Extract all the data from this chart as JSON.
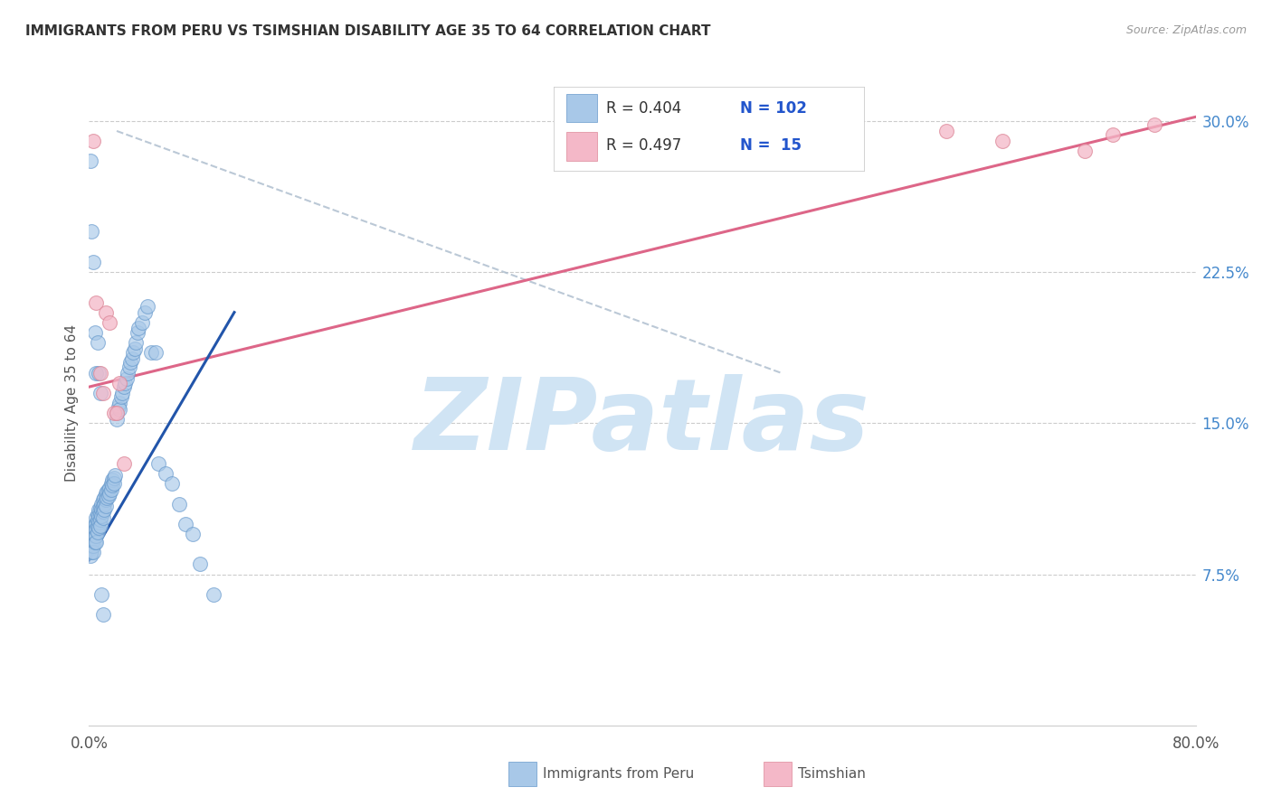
{
  "title": "IMMIGRANTS FROM PERU VS TSIMSHIAN DISABILITY AGE 35 TO 64 CORRELATION CHART",
  "source": "Source: ZipAtlas.com",
  "ylabel": "Disability Age 35 to 64",
  "xmin": 0.0,
  "xmax": 0.8,
  "ymin": 0.0,
  "ymax": 0.32,
  "xticks": [
    0.0,
    0.1,
    0.2,
    0.3,
    0.4,
    0.5,
    0.6,
    0.7,
    0.8
  ],
  "yticks": [
    0.0,
    0.075,
    0.15,
    0.225,
    0.3
  ],
  "yticklabels_right": [
    "",
    "7.5%",
    "15.0%",
    "22.5%",
    "30.0%"
  ],
  "legend_R1": "0.404",
  "legend_N1": "102",
  "legend_R2": "0.497",
  "legend_N2": "15",
  "blue_color": "#A8C8E8",
  "blue_edge_color": "#6699CC",
  "pink_color": "#F4B8C8",
  "pink_edge_color": "#DD8899",
  "line_blue_color": "#2255AA",
  "line_pink_color": "#DD6688",
  "dashed_line_color": "#AABBCC",
  "watermark": "ZIPatlas",
  "watermark_color": "#D0E4F4",
  "label1": "Immigrants from Peru",
  "label2": "Tsimshian",
  "blue_scatter_x": [
    0.001,
    0.001,
    0.001,
    0.001,
    0.002,
    0.002,
    0.002,
    0.002,
    0.003,
    0.003,
    0.003,
    0.003,
    0.003,
    0.004,
    0.004,
    0.004,
    0.004,
    0.005,
    0.005,
    0.005,
    0.005,
    0.005,
    0.006,
    0.006,
    0.006,
    0.006,
    0.007,
    0.007,
    0.007,
    0.007,
    0.008,
    0.008,
    0.008,
    0.008,
    0.009,
    0.009,
    0.009,
    0.01,
    0.01,
    0.01,
    0.01,
    0.011,
    0.011,
    0.011,
    0.012,
    0.012,
    0.012,
    0.013,
    0.013,
    0.014,
    0.014,
    0.015,
    0.015,
    0.016,
    0.016,
    0.017,
    0.017,
    0.018,
    0.018,
    0.019,
    0.02,
    0.02,
    0.021,
    0.022,
    0.022,
    0.023,
    0.024,
    0.025,
    0.026,
    0.027,
    0.028,
    0.029,
    0.03,
    0.031,
    0.032,
    0.033,
    0.034,
    0.035,
    0.036,
    0.038,
    0.04,
    0.042,
    0.045,
    0.048,
    0.05,
    0.055,
    0.06,
    0.065,
    0.07,
    0.075,
    0.08,
    0.09,
    0.001,
    0.002,
    0.003,
    0.004,
    0.005,
    0.006,
    0.007,
    0.008,
    0.009,
    0.01
  ],
  "blue_scatter_y": [
    0.09,
    0.088,
    0.086,
    0.084,
    0.095,
    0.092,
    0.089,
    0.086,
    0.098,
    0.095,
    0.092,
    0.089,
    0.086,
    0.1,
    0.097,
    0.094,
    0.091,
    0.103,
    0.1,
    0.097,
    0.094,
    0.091,
    0.105,
    0.102,
    0.099,
    0.096,
    0.107,
    0.104,
    0.101,
    0.098,
    0.108,
    0.105,
    0.102,
    0.099,
    0.11,
    0.107,
    0.104,
    0.112,
    0.109,
    0.106,
    0.103,
    0.113,
    0.11,
    0.107,
    0.115,
    0.112,
    0.109,
    0.116,
    0.113,
    0.117,
    0.114,
    0.118,
    0.115,
    0.12,
    0.117,
    0.122,
    0.119,
    0.123,
    0.12,
    0.124,
    0.155,
    0.152,
    0.158,
    0.16,
    0.157,
    0.163,
    0.165,
    0.168,
    0.17,
    0.172,
    0.175,
    0.178,
    0.18,
    0.182,
    0.185,
    0.187,
    0.19,
    0.195,
    0.197,
    0.2,
    0.205,
    0.208,
    0.185,
    0.185,
    0.13,
    0.125,
    0.12,
    0.11,
    0.1,
    0.095,
    0.08,
    0.065,
    0.28,
    0.245,
    0.23,
    0.195,
    0.175,
    0.19,
    0.175,
    0.165,
    0.065,
    0.055
  ],
  "pink_scatter_x": [
    0.003,
    0.005,
    0.008,
    0.01,
    0.012,
    0.015,
    0.018,
    0.02,
    0.022,
    0.025,
    0.62,
    0.66,
    0.72,
    0.74,
    0.77
  ],
  "pink_scatter_y": [
    0.29,
    0.21,
    0.175,
    0.165,
    0.205,
    0.2,
    0.155,
    0.155,
    0.17,
    0.13,
    0.295,
    0.29,
    0.285,
    0.293,
    0.298
  ],
  "blue_line_x": [
    0.0,
    0.105
  ],
  "blue_line_y": [
    0.082,
    0.205
  ],
  "pink_line_x": [
    0.0,
    0.8
  ],
  "pink_line_y": [
    0.168,
    0.302
  ],
  "dashed_line_x": [
    0.02,
    0.5
  ],
  "dashed_line_y": [
    0.295,
    0.175
  ]
}
